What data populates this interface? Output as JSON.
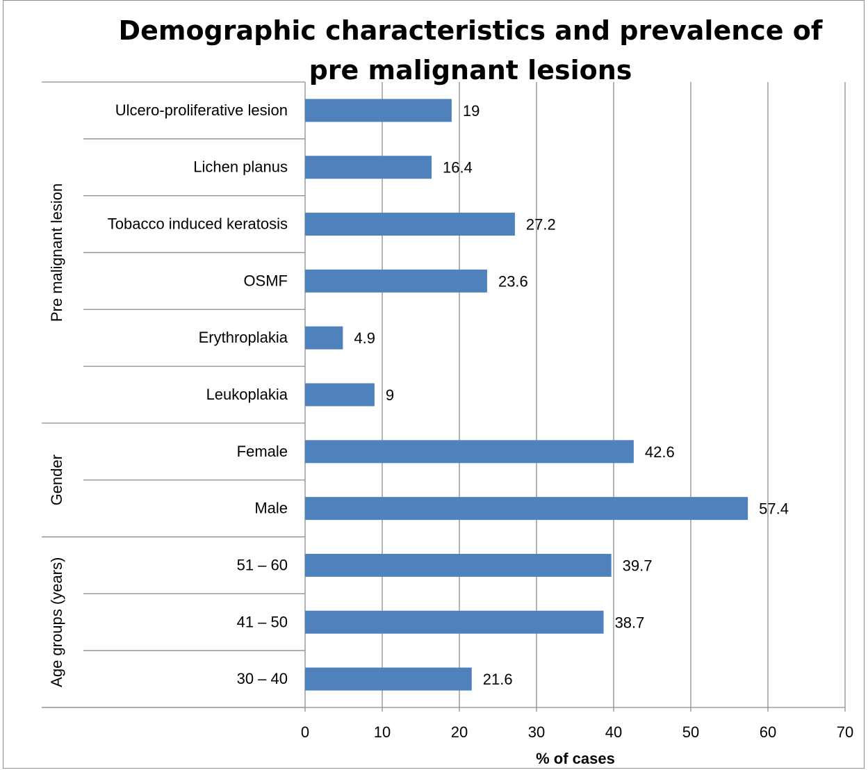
{
  "chart_data": {
    "type": "bar",
    "orientation": "horizontal",
    "title": "Demographic characteristics and prevalence of pre malignant lesions",
    "title_lines": [
      "Demographic characteristics and prevalence of",
      "pre malignant lesions"
    ],
    "xlabel": "% of cases",
    "xlim": [
      0,
      70
    ],
    "xticks": [
      "0",
      "10",
      "20",
      "30",
      "40",
      "50",
      "60",
      "70"
    ],
    "grid": "vertical",
    "bar_color": "#4f81bd",
    "categories": [
      {
        "label": "Ulcero-proliferative lesion",
        "value": 19,
        "value_label": "19",
        "group": "Pre malignant lesion"
      },
      {
        "label": "Lichen planus",
        "value": 16.4,
        "value_label": "16.4",
        "group": "Pre malignant lesion"
      },
      {
        "label": "Tobacco induced keratosis",
        "value": 27.2,
        "value_label": "27.2",
        "group": "Pre malignant lesion"
      },
      {
        "label": "OSMF",
        "value": 23.6,
        "value_label": "23.6",
        "group": "Pre malignant lesion"
      },
      {
        "label": "Erythroplakia",
        "value": 4.9,
        "value_label": "4.9",
        "group": "Pre malignant lesion"
      },
      {
        "label": "Leukoplakia",
        "value": 9,
        "value_label": "9",
        "group": "Pre malignant lesion"
      },
      {
        "label": "Female",
        "value": 42.6,
        "value_label": "42.6",
        "group": "Gender"
      },
      {
        "label": "Male",
        "value": 57.4,
        "value_label": "57.4",
        "group": "Gender"
      },
      {
        "label": "51 – 60",
        "value": 39.7,
        "value_label": "39.7",
        "group": "Age groups (years)"
      },
      {
        "label": "41 – 50",
        "value": 38.7,
        "value_label": "38.7",
        "group": "Age groups (years)"
      },
      {
        "label": "30 – 40",
        "value": 21.6,
        "value_label": "21.6",
        "group": "Age groups (years)"
      }
    ],
    "groups": [
      {
        "name": "Pre malignant lesion",
        "count": 6
      },
      {
        "name": "Gender",
        "count": 2
      },
      {
        "name": "Age groups (years)",
        "count": 3
      }
    ]
  }
}
